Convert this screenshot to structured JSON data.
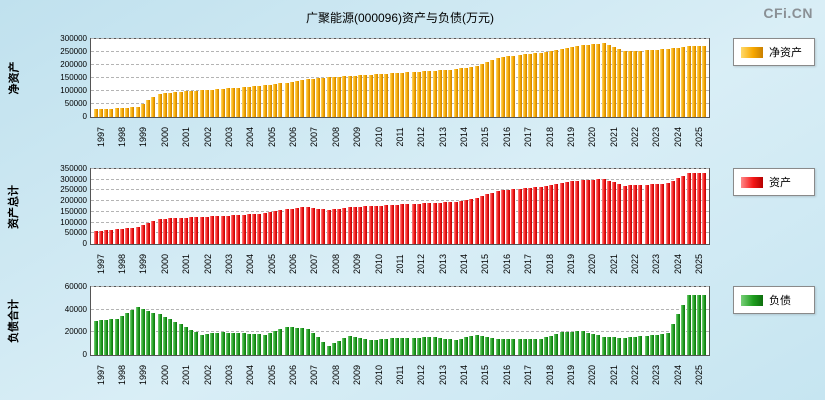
{
  "page": {
    "watermark": "CFi.CN"
  },
  "chart_data": {
    "type": "bar",
    "title": "广聚能源(000096)资产与负债(万元)",
    "unit": "万元",
    "years": [
      1997,
      1998,
      1999,
      2000,
      2001,
      2002,
      2003,
      2004,
      2005,
      2006,
      2007,
      2008,
      2009,
      2010,
      2011,
      2012,
      2013,
      2014,
      2015,
      2016,
      2017,
      2018,
      2019,
      2020,
      2021,
      2022,
      2023,
      2024,
      2025
    ],
    "bars_per_year": 4,
    "note": "each year shows 4 quarterly bars; values below are estimated year-level readings",
    "charts": [
      {
        "id": "net-assets",
        "axis_label": "净资产",
        "legend_label": "净资产",
        "color": "#F7A800",
        "ymax": 300000,
        "yticks": [
          0,
          50000,
          100000,
          150000,
          200000,
          250000,
          300000
        ],
        "values": [
          30000,
          33000,
          38000,
          90000,
          98000,
          103000,
          108000,
          115000,
          122000,
          132000,
          145000,
          152000,
          158000,
          163000,
          168000,
          173000,
          178000,
          184000,
          196000,
          228000,
          238000,
          248000,
          262000,
          276000,
          284000,
          252000,
          256000,
          262000,
          272000
        ]
      },
      {
        "id": "total-assets",
        "axis_label": "资产总计",
        "legend_label": "资产",
        "color": "#F51818",
        "ymax": 350000,
        "yticks": [
          0,
          50000,
          100000,
          150000,
          200000,
          250000,
          300000,
          350000
        ],
        "values": [
          60000,
          68000,
          78000,
          118000,
          122000,
          126000,
          131000,
          137000,
          143000,
          163000,
          173000,
          158000,
          172000,
          177000,
          182000,
          187000,
          192000,
          197000,
          216000,
          248000,
          258000,
          267000,
          286000,
          298000,
          304000,
          272000,
          277000,
          284000,
          330000
        ]
      },
      {
        "id": "liabilities",
        "axis_label": "负债合计",
        "legend_label": "负债",
        "color": "#1F9E1F",
        "ymax": 60000,
        "yticks": [
          0,
          20000,
          40000,
          60000
        ],
        "values": [
          30000,
          32000,
          42000,
          36000,
          27000,
          18000,
          20000,
          19000,
          18000,
          25000,
          23000,
          8000,
          17000,
          13000,
          15000,
          15000,
          16000,
          13000,
          18000,
          14000,
          14000,
          14000,
          20000,
          21000,
          16000,
          15000,
          17000,
          19000,
          53000
        ]
      }
    ]
  }
}
